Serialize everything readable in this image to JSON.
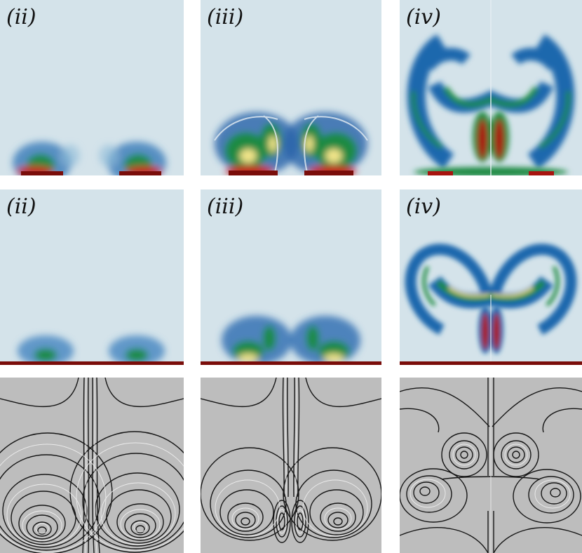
{
  "row1": {
    "labels": [
      "(ii)",
      "(iii)",
      "(iv)"
    ]
  },
  "row2": {
    "labels": [
      "(ii)",
      "(iii)",
      "(iv)"
    ]
  },
  "colors": {
    "background": "#d4e3ea",
    "blue": "#1f67ad",
    "midblue": "#6aa6cf",
    "green": "#1f8a43",
    "yellow": "#f2e58a",
    "red": "#c91d14",
    "darkred": "#7a0d0a",
    "lic_light": "#f4f4f4",
    "lic_dark": "#121212"
  }
}
